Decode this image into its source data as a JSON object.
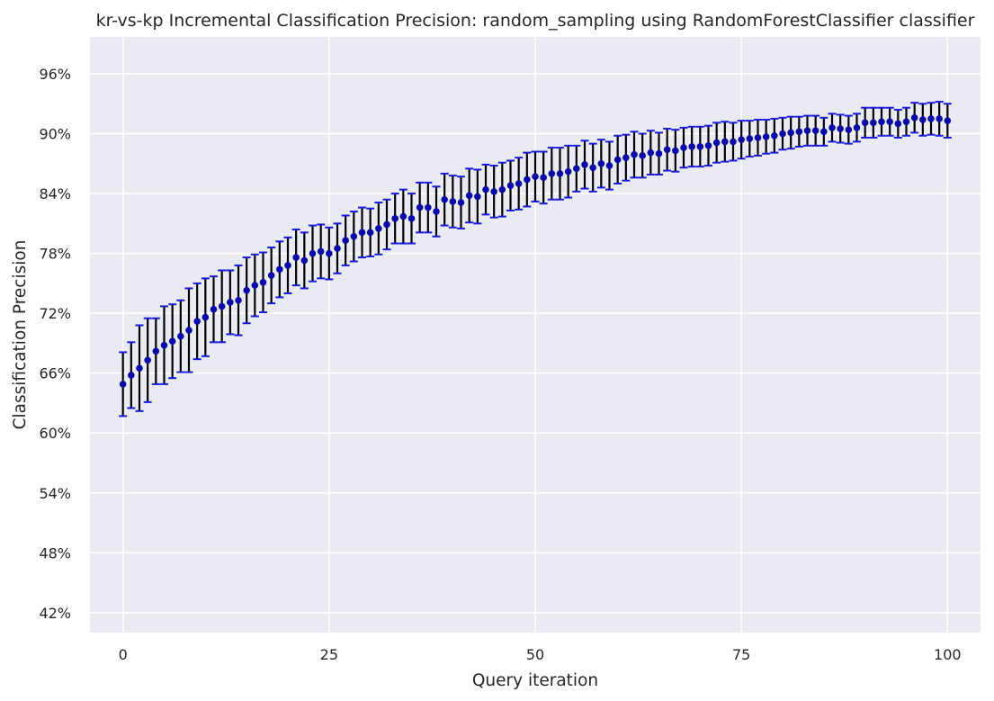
{
  "chart_data": {
    "type": "scatter",
    "title": "kr-vs-kp Incremental Classification Precision: random_sampling using RandomForestClassifier classifier",
    "xlabel": "Query iteration",
    "ylabel": "Classification Precision",
    "xlim": [
      -4,
      104
    ],
    "ylim": [
      40,
      99.7
    ],
    "x_ticks": [
      0,
      25,
      50,
      75,
      100
    ],
    "y_ticks": [
      42,
      48,
      54,
      60,
      66,
      72,
      78,
      84,
      90,
      96
    ],
    "y_tick_format": "percent",
    "grid": true,
    "legend": "none",
    "background_color": "#eaeaf2",
    "grid_color": "#ffffff",
    "marker_color": "#0a0aa8",
    "errorbar_color": "#000000",
    "cap_color": "#1a1ad8",
    "series": [
      {
        "x": [
          0,
          1,
          2,
          3,
          4,
          5,
          6,
          7,
          8,
          9,
          10,
          11,
          12,
          13,
          14,
          15,
          16,
          17,
          18,
          19,
          20,
          21,
          22,
          23,
          24,
          25,
          26,
          27,
          28,
          29,
          30,
          31,
          32,
          33,
          34,
          35,
          36,
          37,
          38,
          39,
          40,
          41,
          42,
          43,
          44,
          45,
          46,
          47,
          48,
          49,
          50,
          51,
          52,
          53,
          54,
          55,
          56,
          57,
          58,
          59,
          60,
          61,
          62,
          63,
          64,
          65,
          66,
          67,
          68,
          69,
          70,
          71,
          72,
          73,
          74,
          75,
          76,
          77,
          78,
          79,
          80,
          81,
          82,
          83,
          84,
          85,
          86,
          87,
          88,
          89,
          90,
          91,
          92,
          93,
          94,
          95,
          96,
          97,
          98,
          99,
          100
        ],
        "y": [
          64.9,
          65.8,
          66.5,
          67.3,
          68.2,
          68.8,
          69.2,
          69.7,
          70.3,
          71.2,
          71.6,
          72.4,
          72.7,
          73.1,
          73.3,
          74.3,
          74.8,
          75.1,
          75.8,
          76.4,
          76.8,
          77.6,
          77.3,
          78.0,
          78.2,
          78.0,
          78.5,
          79.3,
          79.7,
          80.1,
          80.1,
          80.5,
          80.9,
          81.5,
          81.7,
          81.5,
          82.6,
          82.6,
          82.2,
          83.4,
          83.2,
          83.1,
          83.8,
          83.7,
          84.4,
          84.2,
          84.4,
          84.8,
          85.0,
          85.4,
          85.7,
          85.6,
          86.0,
          86.0,
          86.2,
          86.5,
          86.9,
          86.6,
          87.0,
          86.8,
          87.4,
          87.6,
          87.9,
          87.8,
          88.1,
          88.0,
          88.4,
          88.3,
          88.6,
          88.7,
          88.7,
          88.8,
          89.1,
          89.2,
          89.2,
          89.4,
          89.5,
          89.6,
          89.7,
          89.8,
          90.0,
          90.1,
          90.2,
          90.3,
          90.3,
          90.2,
          90.6,
          90.5,
          90.4,
          90.6,
          91.1,
          91.1,
          91.2,
          91.2,
          91.0,
          91.2,
          91.6,
          91.4,
          91.5,
          91.5,
          91.3
        ],
        "yerr": [
          3.2,
          3.3,
          4.3,
          4.2,
          3.3,
          3.9,
          3.7,
          3.6,
          4.2,
          3.8,
          3.9,
          3.3,
          3.6,
          3.2,
          3.5,
          3.3,
          3.1,
          3.0,
          2.8,
          2.8,
          2.8,
          2.8,
          2.8,
          2.8,
          2.7,
          2.6,
          2.5,
          2.5,
          2.5,
          2.5,
          2.4,
          2.6,
          2.5,
          2.5,
          2.7,
          2.5,
          2.5,
          2.5,
          2.5,
          2.6,
          2.6,
          2.6,
          2.7,
          2.7,
          2.5,
          2.6,
          2.7,
          2.5,
          2.6,
          2.7,
          2.5,
          2.6,
          2.6,
          2.6,
          2.6,
          2.3,
          2.4,
          2.4,
          2.4,
          2.4,
          2.4,
          2.3,
          2.3,
          2.2,
          2.2,
          2.1,
          2.1,
          2.1,
          2.0,
          2.0,
          2.0,
          2.0,
          2.0,
          2.0,
          1.9,
          1.9,
          1.8,
          1.8,
          1.7,
          1.7,
          1.6,
          1.6,
          1.5,
          1.5,
          1.5,
          1.4,
          1.4,
          1.4,
          1.4,
          1.4,
          1.5,
          1.5,
          1.4,
          1.4,
          1.4,
          1.4,
          1.5,
          1.6,
          1.6,
          1.7,
          1.7
        ]
      }
    ]
  }
}
